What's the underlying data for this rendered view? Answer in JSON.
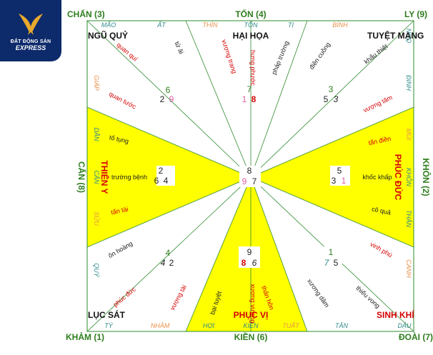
{
  "logo": {
    "icon": "swallow-logo-icon",
    "brand_top": "ĐẤT ĐỘNG SẢN",
    "brand_bottom": "EXPRESS",
    "colors": {
      "bg": "#0d2a6b",
      "bird": "#e8a92c"
    }
  },
  "trigrams": {
    "chan": "CHẤN (3)",
    "ton": "TỐN (4)",
    "ly": "LY (9)",
    "can_left": "CẤN (8)",
    "khon": "KHÔN (2)",
    "kham": "KHẢM (1)",
    "kien": "KIỀN (6)",
    "doai": "ĐOÀI (7)"
  },
  "mountains": {
    "mao": "MÃO",
    "at": "ẤT",
    "thin": "THÌN",
    "ton": "TỐN",
    "ti": "TỊ",
    "binh": "BÍNH",
    "ngo": "NGỌ",
    "dinh": "ĐINH",
    "mui": "MÙI",
    "khon": "KHÔN",
    "than": "THÂN",
    "canh": "CANH",
    "dau": "DẬU",
    "tan_right": "TÂN",
    "tuat": "TUẤT",
    "kien": "KIỀN",
    "hoi": "HỢI",
    "nham": "NHÂM",
    "ty": "TÝ",
    "quy": "QUÝ",
    "suu": "SỬU",
    "can": "CẤN",
    "dan": "DẦN",
    "giap": "GIÁP"
  },
  "sectors": {
    "ngu_quy": "NGŨ QUỶ",
    "hai_hoa": "HẠI HỌA",
    "tuyet_mang": "TUYỆT MẠNG",
    "thien_y": "THIÊN Y",
    "phuc_duc": "PHÚC ĐỨC",
    "luc_sat": "LỤC SÁT",
    "phuc_vi": "PHỤC VỊ",
    "sinh_khi": "SINH KHÍ"
  },
  "stars": {
    "quan_qui": "quan quí",
    "tu_ai": "tử ải",
    "vuong_trang": "vượng trang",
    "hung_phuoc": "hưng phước",
    "phap_truong": "pháp trường",
    "dien_cuong": "điên cuồng",
    "khau_thiet": "khẩu thiệt",
    "quan_tuoc": "quan tước",
    "vuong_tam": "vượng tâm",
    "to_tung": "tố tụng",
    "truong_benh": "trường bệnh",
    "tan_tai": "tấn tài",
    "tan_dien": "tấn điền",
    "khoc_khap": "khốc khấp",
    "co_qua": "cô quả",
    "on_hoang": "ôn hoàng",
    "phuc_duc_lower": "phúc đức",
    "vuong_tai": "vượng tài",
    "bai_tuyet": "bại tuyệt",
    "xuong_vuong": "xương vượng",
    "than_hon": "thân hôn",
    "vinh_phu": "vinh phú",
    "xuong_dam": "xương dâm",
    "thieu_vong": "thiếu vong"
  },
  "numbers": {
    "nw": {
      "period": "6",
      "a": "2",
      "b": "9"
    },
    "n": {
      "period": "7",
      "a": "1",
      "b": "8"
    },
    "ne": {
      "period": "3",
      "a": "5",
      "b": "3"
    },
    "w": {
      "period": "2",
      "a": "6",
      "b": "4"
    },
    "center": {
      "period": "8",
      "a": "9",
      "b": "7"
    },
    "e": {
      "period": "5",
      "a": "3",
      "b": "1"
    },
    "sw": {
      "period": "4",
      "a": "4",
      "b": "2"
    },
    "s": {
      "period": "9",
      "a": "8",
      "b": "6"
    },
    "se": {
      "period": "1",
      "a": "7",
      "b": "5"
    }
  },
  "colors": {
    "frame": "#2e8b2e",
    "yellow": "#ffff00",
    "trigram": "#2e7d1e",
    "mountain": "#2e8b8b",
    "mountain_alt": "#e8914a",
    "red": "#d40000",
    "dark": "#222222",
    "pink": "#e060a0"
  }
}
